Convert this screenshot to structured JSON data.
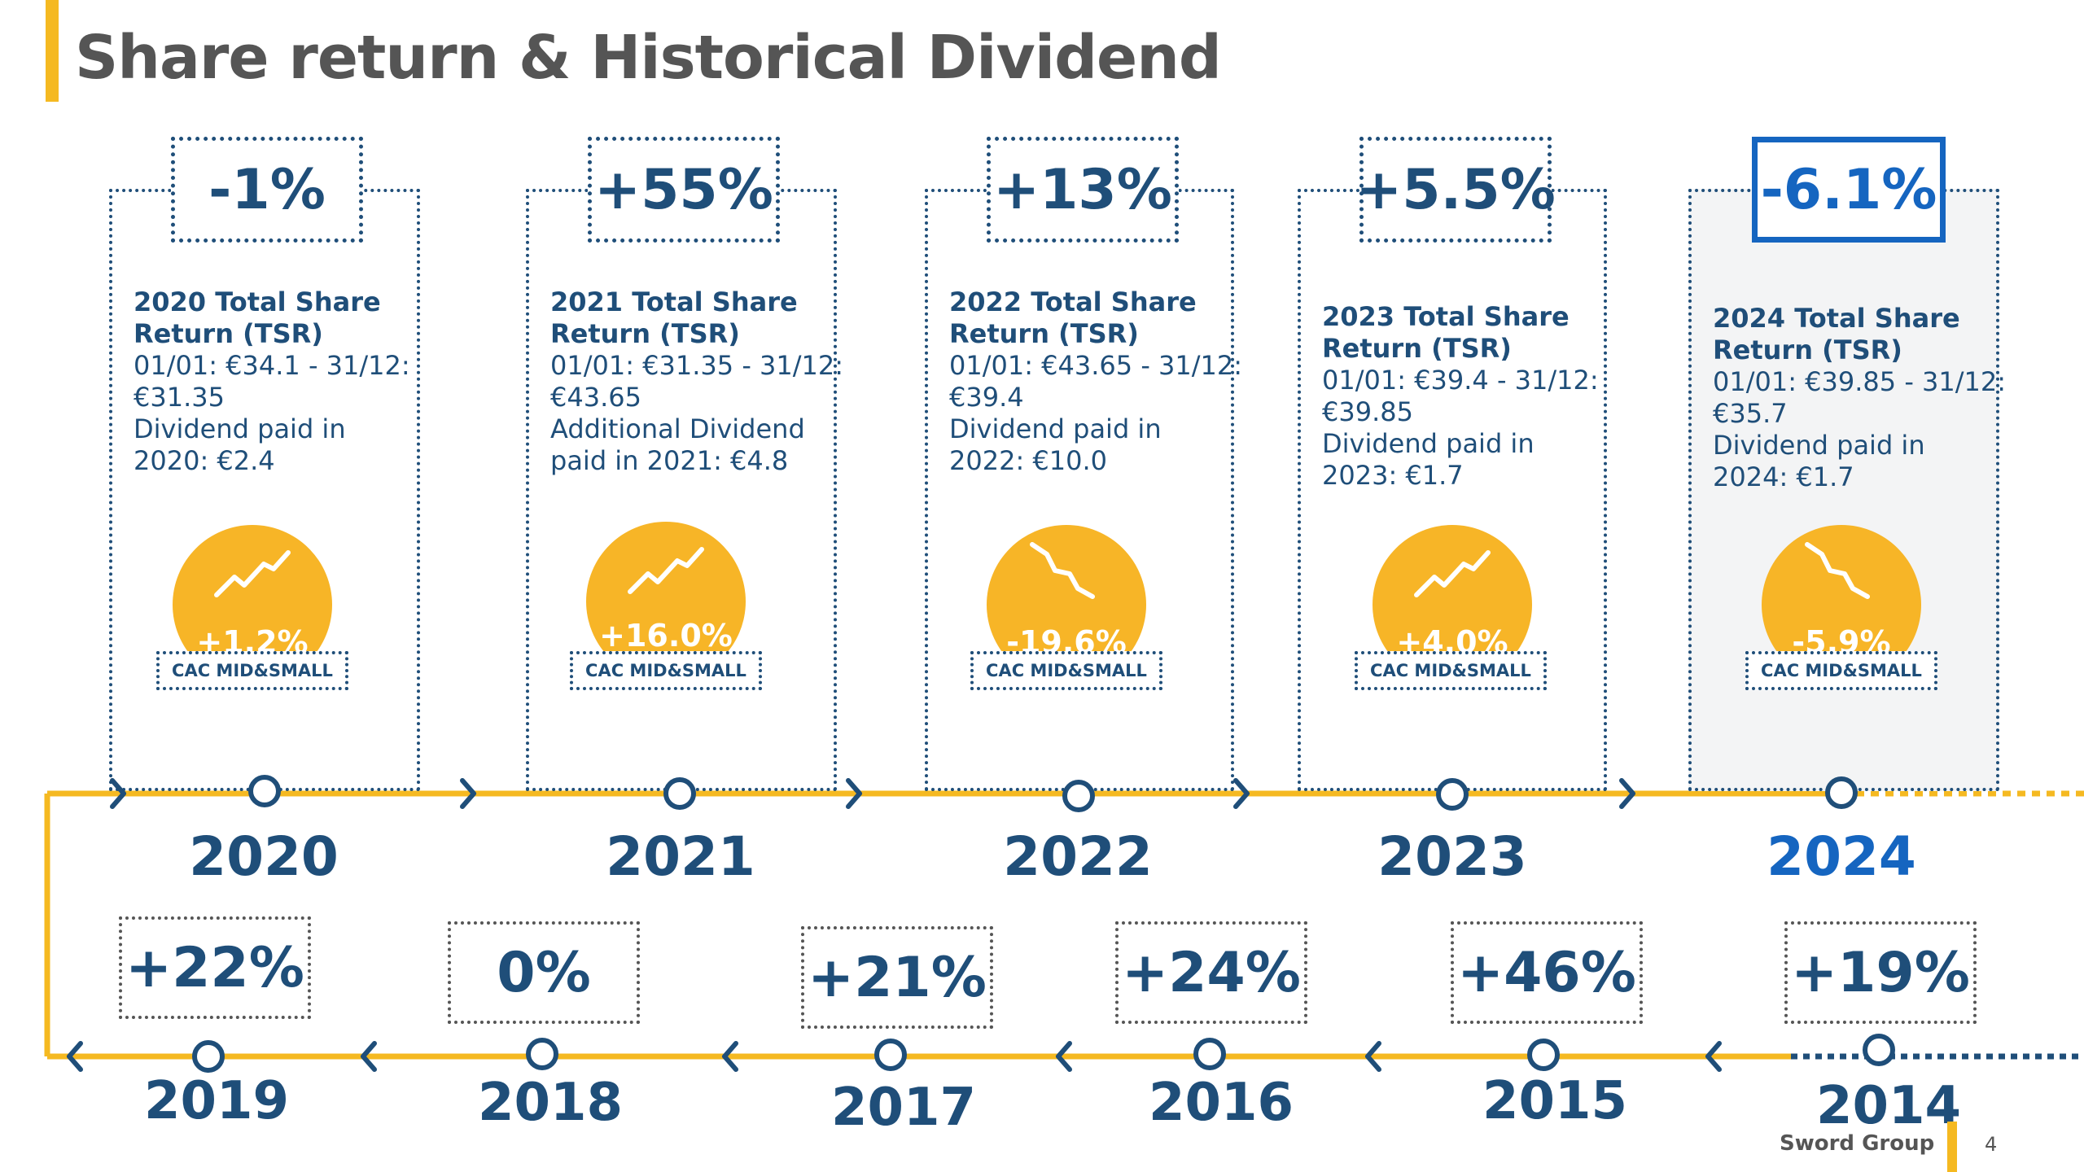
{
  "title": "Share return & Historical Dividend",
  "colors": {
    "accent": "#f5b921",
    "navy": "#1f4e79",
    "current_blue": "#1565c0",
    "badge": "#f7b527"
  },
  "cards": [
    {
      "tsr": "-1%",
      "head": "2020 Total Share\nReturn (TSR)",
      "body": "01/01: €34.1 - 31/12:\n€31.35\nDividend paid in\n2020: €2.4",
      "trend": "up",
      "cac": "+1.2%",
      "cac_label": "CAC MID&SMALL",
      "year": "2020"
    },
    {
      "tsr": "+55%",
      "head": "2021 Total Share\nReturn (TSR)",
      "body": "01/01: €31.35 - 31/12:\n€43.65\nAdditional Dividend\npaid in 2021: €4.8",
      "trend": "up",
      "cac": "+16.0%",
      "cac_label": "CAC MID&SMALL",
      "year": "2021"
    },
    {
      "tsr": "+13%",
      "head": "2022 Total Share\nReturn (TSR)",
      "body": "01/01: €43.65 - 31/12:\n€39.4\nDividend paid in\n2022: €10.0",
      "trend": "down",
      "cac": "-19.6%",
      "cac_label": "CAC MID&SMALL",
      "year": "2022"
    },
    {
      "tsr": "+5.5%",
      "head": "2023 Total Share\nReturn (TSR)",
      "body": "01/01: €39.4 - 31/12:\n€39.85\nDividend paid in\n2023: €1.7",
      "trend": "up",
      "cac": "+4.0%",
      "cac_label": "CAC MID&SMALL",
      "year": "2023"
    },
    {
      "tsr": "-6.1%",
      "head": "2024 Total Share\nReturn (TSR)",
      "body": "01/01: €39.85 - 31/12:\n€35.7\nDividend paid in\n2024: €1.7",
      "trend": "down",
      "cac": "-5.9%",
      "cac_label": "CAC MID&SMALL",
      "year": "2024"
    }
  ],
  "history": [
    {
      "value": "+22%",
      "year": "2019"
    },
    {
      "value": "0%",
      "year": "2018"
    },
    {
      "value": "+21%",
      "year": "2017"
    },
    {
      "value": "+24%",
      "year": "2016"
    },
    {
      "value": "+46%",
      "year": "2015"
    },
    {
      "value": "+19%",
      "year": "2014"
    }
  ],
  "footer": {
    "company": "Sword Group",
    "page": "4"
  }
}
